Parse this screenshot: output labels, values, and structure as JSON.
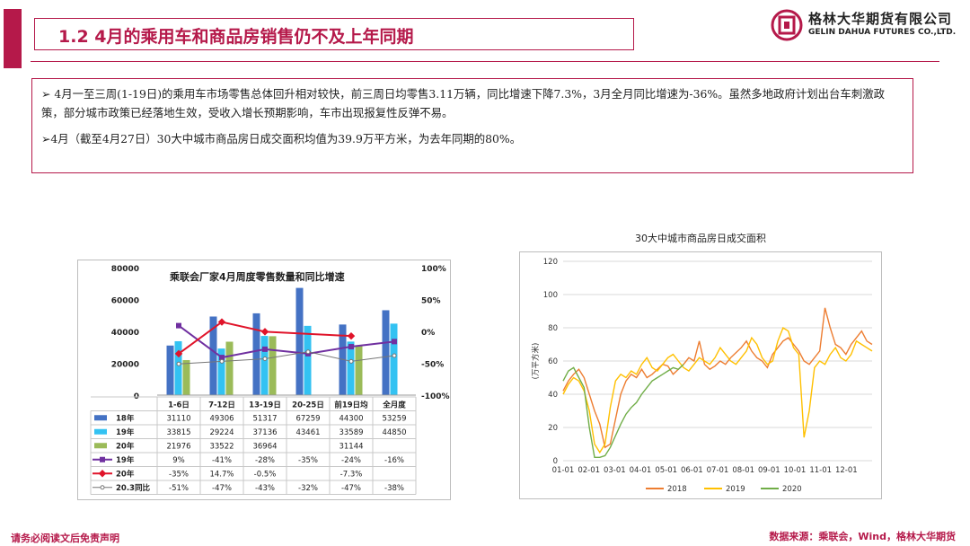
{
  "header": {
    "title": "1.2 4月的乘用车和商品房销售仍不及上年同期",
    "logo_cn": "格林大华期货有限公司",
    "logo_en": "GELIN DAHUA FUTURES CO.,LTD."
  },
  "bullets": [
    "➢ 4月一至三周(1-19日)的乘用车市场零售总体回升相对较快，前三周日均零售3.11万辆，同比增速下降7.3%，3月全月同比增速为-36%。虽然多地政府计划出台车刺激政策，部分城市政策已经落地生效，受收入增长预期影响，车市出现报复性反弹不易。",
    "➢4月（截至4月27日）30大中城市商品房日成交面积均值为39.9万平方米，为去年同期的80%。"
  ],
  "footer": {
    "left": "请务必阅读文后免责声明",
    "right": "数据来源：乘联会，Wind，格林大华期货"
  },
  "colors": {
    "accent": "#b5194a",
    "s18": "#4472c4",
    "s19": "#33c2f2",
    "s20": "#9bbb59",
    "l19": "#7030a0",
    "l20": "#e0142a",
    "l203": "#777777",
    "h2018": "#ed7d31",
    "h2019": "#ffc000",
    "h2020": "#70ad47"
  },
  "chart_data": [
    {
      "type": "bar",
      "title": "乘联会厂家4月周度零售数量和同比增速",
      "categories": [
        "1-6日",
        "7-12日",
        "13-19日",
        "20-25日",
        "前19日均",
        "全月度"
      ],
      "ylim": [
        0,
        80000
      ],
      "yticks": [
        "80000",
        "60000",
        "40000",
        "20000",
        "0"
      ],
      "y2lim": [
        -100,
        100
      ],
      "y2ticks": [
        "100%",
        "50%",
        "0%",
        "-50%",
        "-100%"
      ],
      "series": [
        {
          "name": "18年",
          "kind": "bar",
          "values": [
            31110,
            49306,
            51317,
            67259,
            44300,
            53259
          ],
          "labels": [
            "31110",
            "49306",
            "51317",
            "67259",
            "44300",
            "53259"
          ]
        },
        {
          "name": "19年",
          "kind": "bar",
          "values": [
            33815,
            29224,
            37136,
            43461,
            33589,
            44850
          ],
          "labels": [
            "33815",
            "29224",
            "37136",
            "43461",
            "33589",
            "44850"
          ]
        },
        {
          "name": "20年",
          "kind": "bar",
          "values": [
            21976,
            33522,
            36964,
            null,
            31144,
            null
          ],
          "labels": [
            "21976",
            "33522",
            "36964",
            "",
            "31144",
            ""
          ]
        },
        {
          "name": "19年",
          "kind": "line",
          "values": [
            9,
            -41,
            -28,
            -35,
            -24,
            -16
          ],
          "labels": [
            "9%",
            "-41%",
            "-28%",
            "-35%",
            "-24%",
            "-16%"
          ]
        },
        {
          "name": "20年",
          "kind": "line",
          "values": [
            -35,
            14.7,
            -0.5,
            null,
            -7.3,
            null
          ],
          "labels": [
            "-35%",
            "14.7%",
            "-0.5%",
            "",
            "-7.3%",
            ""
          ]
        },
        {
          "name": "20.3同比",
          "kind": "line",
          "values": [
            -51,
            -47,
            -43,
            -32,
            -47,
            -38
          ],
          "labels": [
            "-51%",
            "-47%",
            "-43%",
            "-32%",
            "-47%",
            "-38%"
          ]
        }
      ]
    },
    {
      "type": "line",
      "title": "30大中城市商品房日成交面积",
      "ylabel": "(万平方米)",
      "ylim": [
        0,
        120
      ],
      "yticks": [
        "0",
        "20",
        "40",
        "60",
        "80",
        "100",
        "120"
      ],
      "xticks": [
        "01-01",
        "02-01",
        "03-01",
        "04-01",
        "05-01",
        "06-01",
        "07-01",
        "08-01",
        "09-01",
        "10-01",
        "11-01",
        "12-01"
      ],
      "series": [
        {
          "name": "2018",
          "values": [
            42,
            48,
            52,
            55,
            50,
            40,
            30,
            22,
            8,
            10,
            25,
            40,
            48,
            52,
            50,
            55,
            50,
            52,
            55,
            58,
            57,
            52,
            55,
            58,
            62,
            60,
            72,
            58,
            55,
            57,
            60,
            58,
            62,
            65,
            68,
            72,
            66,
            62,
            60,
            56,
            64,
            68,
            72,
            74,
            70,
            66,
            60,
            58,
            62,
            66,
            92,
            80,
            70,
            68,
            64,
            70,
            74,
            78,
            72,
            70
          ]
        },
        {
          "name": "2019",
          "values": [
            40,
            46,
            50,
            48,
            42,
            30,
            10,
            5,
            10,
            32,
            48,
            52,
            50,
            54,
            52,
            58,
            62,
            56,
            54,
            58,
            62,
            64,
            60,
            56,
            54,
            58,
            62,
            60,
            58,
            62,
            68,
            64,
            60,
            58,
            62,
            66,
            74,
            70,
            62,
            58,
            60,
            72,
            80,
            78,
            68,
            64,
            14,
            30,
            56,
            60,
            58,
            64,
            68,
            62,
            60,
            64,
            72,
            70,
            68,
            66
          ]
        },
        {
          "name": "2020",
          "values": [
            48,
            54,
            56,
            50,
            44,
            20,
            2,
            2,
            3,
            8,
            15,
            22,
            28,
            32,
            35,
            40,
            44,
            48,
            50,
            52,
            54,
            56,
            55,
            58
          ]
        }
      ]
    }
  ]
}
